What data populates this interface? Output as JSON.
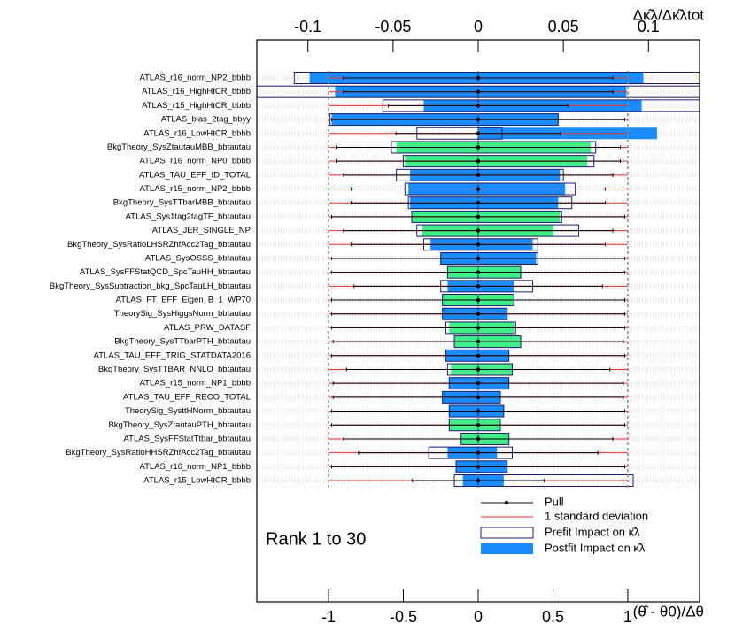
{
  "chart_data": {
    "type": "ranking",
    "annotation": "Rank 1 to 30",
    "xlabel": "(θ̂ - θ0)/Δθ",
    "x2label": "Δκ̂λ/Δκ̂λtot",
    "xlim": [
      -1.48,
      1.48
    ],
    "xticks": [
      -1,
      -0.5,
      0,
      0.5,
      1
    ],
    "x2lim": [
      -0.13,
      0.13
    ],
    "x2ticks": [
      -0.1,
      -0.05,
      0,
      0.05,
      0.1
    ],
    "categories": [
      "ATLAS_r16_norm_NP2_bbbb",
      "ATLAS_r16_HighHtCR_bbbb",
      "ATLAS_r15_HighHtCR_bbbb",
      "ATLAS_bias_2tag_bbyy",
      "ATLAS_r16_LowHtCR_bbbb",
      "BkgTheory_SysZtautauMBB_bbtautau",
      "ATLAS_r16_norm_NP0_bbbb",
      "ATLAS_TAU_EFF_ID_TOTAL",
      "ATLAS_r15_norm_NP2_bbbb",
      "BkgTheory_SysTTbarMBB_bbtautau",
      "ATLAS_Sys1tag2tagTF_bbtautau",
      "ATLAS_JER_SINGLE_NP",
      "BkgTheory_SysRatioLHSRZhfAcc2Tag_bbtautau",
      "ATLAS_SysOSSS_bbtautau",
      "ATLAS_SysFFStatQCD_SpcTauHH_bbtautau",
      "BkgTheory_SysSubtraction_bkg_SpcTauLH_bbtautau",
      "ATLAS_FT_EFF_Eigen_B_1_WP70",
      "TheorySig_SysHiggsNorm_bbtautau",
      "ATLAS_PRW_DATASF",
      "BkgTheory_SysTTbarPTH_bbtautau",
      "ATLAS_TAU_EFF_TRIG_STATDATA2016",
      "BkgTheory_SysTTBAR_NNLO_bbtautau",
      "ATLAS_r15_norm_NP1_bbbb",
      "ATLAS_TAU_EFF_RECO_TOTAL",
      "TheorySig_SysttHNorm_bbtautau",
      "BkgTheory_SysZtautauPTH_bbtautau",
      "ATLAS_SysFFStatTtbar_bbtautau",
      "BkgTheory_SysRatioHHSRZhfAcc2Tag_bbtautau",
      "ATLAS_r16_norm_NP1_bbbb",
      "ATLAS_r15_LowHtCR_bbbb"
    ],
    "pull": {
      "name": "Pull",
      "color": "#000000",
      "values": [
        0,
        0,
        0,
        0,
        0,
        0,
        0,
        0,
        0,
        0,
        0,
        0,
        0,
        0,
        0,
        0,
        0,
        0,
        0,
        0,
        0,
        0,
        0,
        0,
        0,
        0,
        0,
        0,
        0,
        0
      ],
      "errors": [
        0.9,
        0.9,
        0.6,
        0.98,
        0.55,
        0.95,
        0.95,
        0.9,
        0.85,
        0.85,
        0.98,
        0.9,
        0.85,
        0.98,
        0.98,
        0.83,
        0.98,
        0.98,
        0.98,
        0.97,
        0.98,
        0.88,
        0.97,
        0.97,
        0.98,
        0.98,
        0.9,
        0.8,
        0.98,
        0.44
      ]
    },
    "sigma": {
      "name": "1 standard deviation",
      "color": "#e8322c"
    },
    "prefit": {
      "name": "Prefit Impact on κ̂λ",
      "color": "#1c1c6e",
      "down": [
        -0.108,
        -0.14,
        -0.056,
        -0.087,
        -0.036,
        -0.051,
        -0.044,
        -0.048,
        -0.043,
        -0.041,
        -0.039,
        -0.036,
        -0.032,
        -0.022,
        -0.018,
        -0.022,
        -0.021,
        -0.021,
        -0.019,
        -0.014,
        -0.019,
        -0.018,
        -0.017,
        -0.021,
        -0.017,
        -0.017,
        -0.01,
        -0.029,
        -0.013,
        -0.014
      ],
      "up": [
        0.135,
        0.14,
        0.135,
        0.047,
        0.014,
        0.069,
        0.068,
        0.05,
        0.057,
        0.055,
        0.049,
        0.059,
        0.035,
        0.035,
        0.025,
        0.032,
        0.021,
        0.017,
        0.022,
        0.025,
        0.018,
        0.02,
        0.018,
        0.013,
        0.015,
        0.013,
        0.018,
        0.02,
        0.017,
        0.091
      ]
    },
    "postfit": {
      "name": "Postfit Impact on κ̂λ",
      "color": "#1a8cff",
      "down": [
        -0.099,
        -0.084,
        -0.032,
        -0.086,
        0,
        -0.048,
        -0.043,
        -0.04,
        -0.041,
        -0.04,
        -0.039,
        -0.033,
        -0.028,
        -0.022,
        -0.018,
        -0.018,
        -0.021,
        -0.021,
        -0.017,
        -0.014,
        -0.019,
        -0.016,
        -0.017,
        -0.021,
        -0.017,
        -0.017,
        -0.01,
        -0.018,
        -0.013,
        -0.009
      ],
      "up": [
        0.097,
        0.087,
        0.096,
        0.047,
        0.105,
        0.066,
        0.064,
        0.048,
        0.051,
        0.047,
        0.048,
        0.044,
        0.032,
        0.034,
        0.025,
        0.021,
        0.021,
        0.017,
        0.021,
        0.025,
        0.018,
        0.02,
        0.018,
        0.013,
        0.015,
        0.013,
        0.018,
        0.011,
        0.017,
        0.015
      ],
      "colors": [
        "#1a8cff",
        "#1a8cff",
        "#1a8cff",
        "#1a8cff",
        "#1a8cff",
        "#40ee88",
        "#40ee88",
        "#1a8cff",
        "#1a8cff",
        "#1a8cff",
        "#40ee88",
        "#40ee88",
        "#1a8cff",
        "#1a8cff",
        "#40ee88",
        "#1a8cff",
        "#40ee88",
        "#1a8cff",
        "#40ee88",
        "#40ee88",
        "#1a8cff",
        "#40ee88",
        "#1a8cff",
        "#1a8cff",
        "#1a8cff",
        "#40ee88",
        "#40ee88",
        "#1a8cff",
        "#1a8cff",
        "#1a8cff"
      ]
    }
  }
}
